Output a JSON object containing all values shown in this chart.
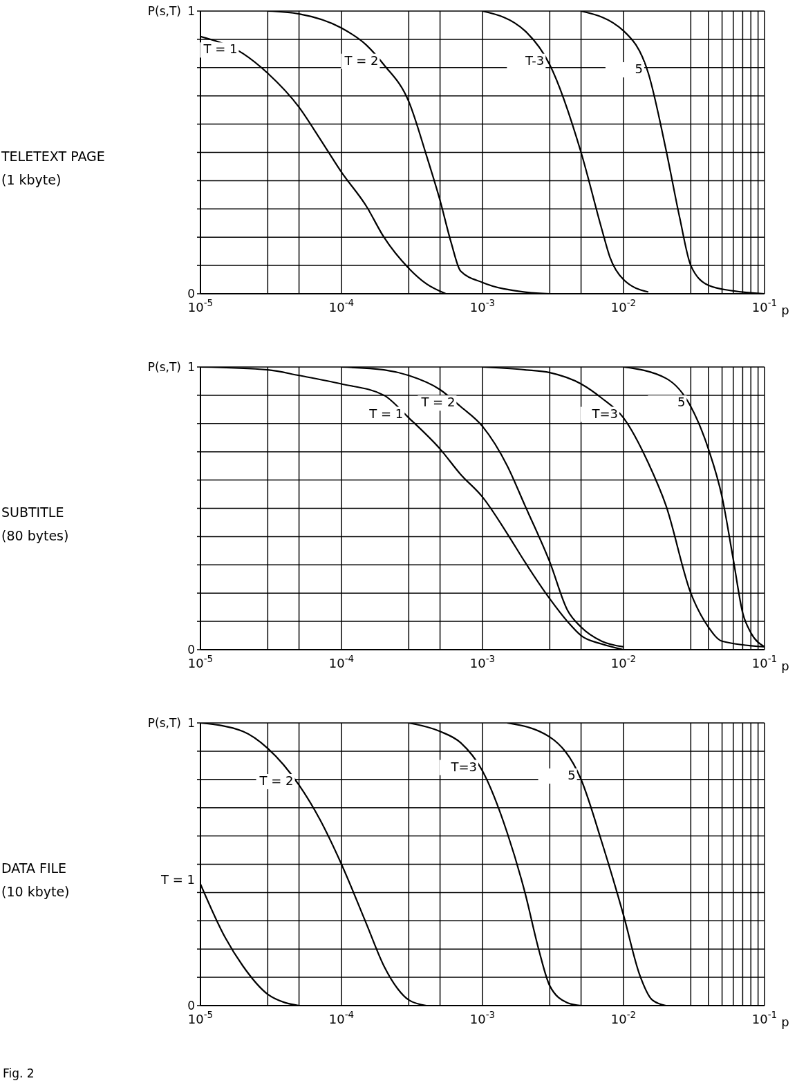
{
  "chart_data": [
    {
      "type": "line",
      "annotations": [
        "TELETEXT PAGE",
        "(1 kbyte)"
      ],
      "xlabel": "p",
      "ylabel": "P(s,T)",
      "log": "x",
      "grid": true,
      "marker": "none",
      "line_style": "solid",
      "legend": false,
      "xlim": [
        1e-05,
        0.1
      ],
      "xticks": [
        {
          "value": 1e-05,
          "label": "10$^{-5}$"
        },
        {
          "value": 3e-05,
          "label": null
        },
        {
          "value": 5e-05,
          "label": null
        },
        {
          "value": 0.0001,
          "label": "10$^{-4}$"
        },
        {
          "value": 0.0003,
          "label": null
        },
        {
          "value": 0.0005,
          "label": null
        },
        {
          "value": 0.001,
          "label": "10$^{-3}$"
        },
        {
          "value": 0.003,
          "label": null
        },
        {
          "value": 0.005,
          "label": null
        },
        {
          "value": 0.01,
          "label": "10$^{-2}$"
        },
        {
          "value": 0.03,
          "label": null
        },
        {
          "value": 0.04,
          "label": null
        },
        {
          "value": 0.05,
          "label": null
        },
        {
          "value": 0.06,
          "label": null
        },
        {
          "value": 0.07,
          "label": null
        },
        {
          "value": 0.08,
          "label": null
        },
        {
          "value": 0.09,
          "label": null
        },
        {
          "value": 0.1,
          "label": "10$^{-1}$"
        }
      ],
      "ylim": [
        0,
        1
      ],
      "yticks": [
        {
          "value": 0,
          "label": "0"
        },
        {
          "value": 0.1,
          "label": null
        },
        {
          "value": 0.2,
          "label": null
        },
        {
          "value": 0.3,
          "label": null
        },
        {
          "value": 0.4,
          "label": null
        },
        {
          "value": 0.5,
          "label": null
        },
        {
          "value": 0.6,
          "label": null
        },
        {
          "value": 0.7,
          "label": null
        },
        {
          "value": 0.8,
          "label": null
        },
        {
          "value": 0.9,
          "label": null
        },
        {
          "value": 1,
          "label": "1"
        }
      ],
      "series": [
        {
          "name": "T = 1",
          "color": "#000000",
          "x": [
            1e-05,
            2e-05,
            3e-05,
            5e-05,
            7e-05,
            0.0001,
            0.00015,
            0.0002,
            0.0003,
            0.0004,
            0.00055
          ],
          "values": [
            0.91,
            0.85,
            0.78,
            0.66,
            0.55,
            0.43,
            0.31,
            0.2,
            0.09,
            0.035,
            0
          ]
        },
        {
          "name": "T = 2",
          "color": "#000000",
          "x": [
            3e-05,
            5e-05,
            0.0001,
            0.00015,
            0.0002,
            0.0003,
            0.0004,
            0.0005,
            0.0006,
            0.0007,
            0.001,
            0.002,
            0.003
          ],
          "values": [
            1,
            0.99,
            0.94,
            0.88,
            0.81,
            0.68,
            0.49,
            0.33,
            0.18,
            0.08,
            0.04,
            0.006,
            0
          ]
        },
        {
          "name": "T-3",
          "color": "#000000",
          "x": [
            0.001,
            0.002,
            0.003,
            0.005,
            0.007,
            0.008,
            0.01,
            0.015
          ],
          "values": [
            1,
            0.93,
            0.81,
            0.5,
            0.23,
            0.13,
            0.05,
            0.006
          ]
        },
        {
          "name": "5",
          "color": "#000000",
          "x": [
            0.005,
            0.01,
            0.015,
            0.02,
            0.025,
            0.03,
            0.04,
            0.06,
            0.1
          ],
          "values": [
            1,
            0.93,
            0.78,
            0.51,
            0.27,
            0.1,
            0.03,
            0.01,
            0
          ]
        }
      ]
    },
    {
      "type": "line",
      "annotations": [
        "SUBTITLE",
        "(80 bytes)"
      ],
      "xlabel": "p",
      "ylabel": "P(s,T)",
      "log": "x",
      "grid": true,
      "marker": "none",
      "line_style": "solid",
      "legend": false,
      "xlim": [
        1e-05,
        0.1
      ],
      "xticks": [
        {
          "value": 1e-05,
          "label": "10$^{-5}$"
        },
        {
          "value": 3e-05,
          "label": null
        },
        {
          "value": 5e-05,
          "label": null
        },
        {
          "value": 0.0001,
          "label": "10$^{-4}$"
        },
        {
          "value": 0.0003,
          "label": null
        },
        {
          "value": 0.0005,
          "label": null
        },
        {
          "value": 0.001,
          "label": "10$^{-3}$"
        },
        {
          "value": 0.003,
          "label": null
        },
        {
          "value": 0.005,
          "label": null
        },
        {
          "value": 0.01,
          "label": "10$^{-2}$"
        },
        {
          "value": 0.03,
          "label": null
        },
        {
          "value": 0.04,
          "label": null
        },
        {
          "value": 0.05,
          "label": null
        },
        {
          "value": 0.06,
          "label": null
        },
        {
          "value": 0.07,
          "label": null
        },
        {
          "value": 0.08,
          "label": null
        },
        {
          "value": 0.09,
          "label": null
        },
        {
          "value": 0.1,
          "label": "10$^{-1}$"
        }
      ],
      "ylim": [
        0,
        1
      ],
      "yticks": [
        {
          "value": 0,
          "label": "0"
        },
        {
          "value": 0.1,
          "label": null
        },
        {
          "value": 0.2,
          "label": null
        },
        {
          "value": 0.3,
          "label": null
        },
        {
          "value": 0.4,
          "label": null
        },
        {
          "value": 0.5,
          "label": null
        },
        {
          "value": 0.6,
          "label": null
        },
        {
          "value": 0.7,
          "label": null
        },
        {
          "value": 0.8,
          "label": null
        },
        {
          "value": 0.9,
          "label": null
        },
        {
          "value": 1,
          "label": "1"
        }
      ],
      "series": [
        {
          "name": "T = 1",
          "color": "#000000",
          "x": [
            1e-05,
            3e-05,
            5e-05,
            0.0001,
            0.0002,
            0.0003,
            0.0005,
            0.0007,
            0.001,
            0.0015,
            0.002,
            0.003,
            0.004,
            0.005,
            0.007,
            0.01
          ],
          "values": [
            1,
            0.99,
            0.97,
            0.94,
            0.9,
            0.82,
            0.71,
            0.62,
            0.54,
            0.41,
            0.31,
            0.18,
            0.1,
            0.05,
            0.02,
            0
          ]
        },
        {
          "name": "T = 2",
          "color": "#000000",
          "x": [
            0.0001,
            0.0002,
            0.0003,
            0.0005,
            0.0007,
            0.001,
            0.0015,
            0.002,
            0.003,
            0.004,
            0.005,
            0.007,
            0.01
          ],
          "values": [
            1,
            0.99,
            0.97,
            0.92,
            0.86,
            0.79,
            0.65,
            0.51,
            0.31,
            0.14,
            0.08,
            0.03,
            0.01
          ]
        },
        {
          "name": "T=3",
          "color": "#000000",
          "x": [
            0.001,
            0.002,
            0.003,
            0.005,
            0.007,
            0.01,
            0.015,
            0.02,
            0.03,
            0.04,
            0.05,
            0.1
          ],
          "values": [
            1,
            0.99,
            0.98,
            0.94,
            0.89,
            0.82,
            0.66,
            0.51,
            0.2,
            0.08,
            0.03,
            0.01
          ]
        },
        {
          "name": "5",
          "color": "#000000",
          "x": [
            0.01,
            0.02,
            0.03,
            0.04,
            0.05,
            0.06,
            0.07,
            0.08,
            0.1
          ],
          "values": [
            1,
            0.96,
            0.86,
            0.71,
            0.54,
            0.32,
            0.13,
            0.06,
            0.01
          ]
        }
      ]
    },
    {
      "type": "line",
      "annotations": [
        "DATA FILE",
        "(10 kbyte)",
        "Fig. 2"
      ],
      "xlabel": "p",
      "ylabel": "P(s,T)",
      "log": "x",
      "grid": true,
      "marker": "none",
      "line_style": "solid",
      "legend": false,
      "xlim": [
        1e-05,
        0.1
      ],
      "xticks": [
        {
          "value": 1e-05,
          "label": "10$^{-5}$"
        },
        {
          "value": 3e-05,
          "label": null
        },
        {
          "value": 5e-05,
          "label": null
        },
        {
          "value": 0.0001,
          "label": "10$^{-4}$"
        },
        {
          "value": 0.0003,
          "label": null
        },
        {
          "value": 0.0005,
          "label": null
        },
        {
          "value": 0.001,
          "label": "10$^{-3}$"
        },
        {
          "value": 0.003,
          "label": null
        },
        {
          "value": 0.005,
          "label": null
        },
        {
          "value": 0.01,
          "label": "10$^{-2}$"
        },
        {
          "value": 0.03,
          "label": null
        },
        {
          "value": 0.04,
          "label": null
        },
        {
          "value": 0.05,
          "label": null
        },
        {
          "value": 0.06,
          "label": null
        },
        {
          "value": 0.07,
          "label": null
        },
        {
          "value": 0.08,
          "label": null
        },
        {
          "value": 0.09,
          "label": null
        },
        {
          "value": 0.1,
          "label": "10$^{-1}$"
        }
      ],
      "ylim": [
        0,
        1
      ],
      "yticks": [
        {
          "value": 0,
          "label": "0"
        },
        {
          "value": 0.1,
          "label": null
        },
        {
          "value": 0.2,
          "label": null
        },
        {
          "value": 0.3,
          "label": null
        },
        {
          "value": 0.4,
          "label": null
        },
        {
          "value": 0.5,
          "label": null
        },
        {
          "value": 0.6,
          "label": null
        },
        {
          "value": 0.7,
          "label": null
        },
        {
          "value": 0.8,
          "label": null
        },
        {
          "value": 0.9,
          "label": null
        },
        {
          "value": 1,
          "label": "1"
        }
      ],
      "series": [
        {
          "name": "T = 1",
          "color": "#000000",
          "x": [
            1e-05,
            1.5e-05,
            2e-05,
            3e-05,
            4e-05,
            5e-05
          ],
          "values": [
            0.43,
            0.24,
            0.14,
            0.04,
            0.01,
            0
          ]
        },
        {
          "name": "T = 2",
          "color": "#000000",
          "x": [
            1e-05,
            2e-05,
            3e-05,
            5e-05,
            7e-05,
            0.0001,
            0.00015,
            0.0002,
            0.00025,
            0.0003,
            0.0004
          ],
          "values": [
            1,
            0.97,
            0.91,
            0.78,
            0.66,
            0.5,
            0.29,
            0.14,
            0.06,
            0.02,
            0
          ]
        },
        {
          "name": "T=3",
          "color": "#000000",
          "x": [
            0.0003,
            0.0005,
            0.0007,
            0.001,
            0.0015,
            0.002,
            0.0025,
            0.003,
            0.004,
            0.005
          ],
          "values": [
            1,
            0.97,
            0.93,
            0.83,
            0.61,
            0.4,
            0.2,
            0.07,
            0.01,
            0
          ]
        },
        {
          "name": "5",
          "color": "#000000",
          "x": [
            0.0015,
            0.003,
            0.005,
            0.007,
            0.01,
            0.013,
            0.016,
            0.02
          ],
          "values": [
            1,
            0.95,
            0.8,
            0.58,
            0.32,
            0.11,
            0.02,
            0
          ]
        }
      ]
    }
  ]
}
